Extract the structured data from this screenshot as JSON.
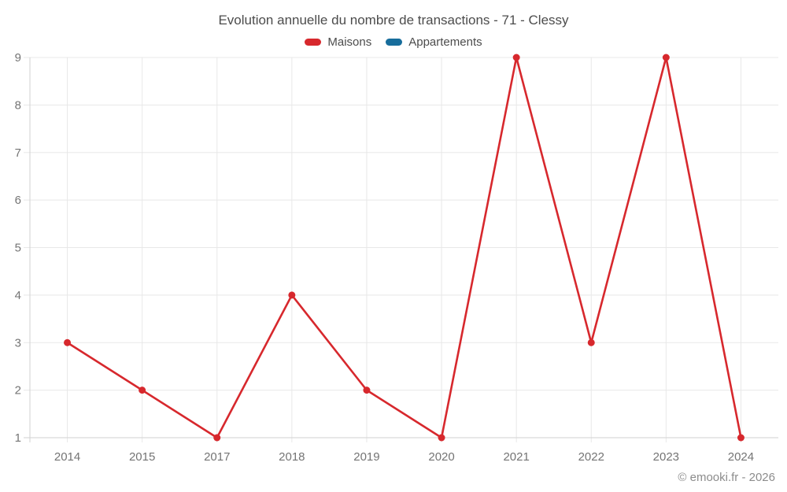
{
  "title": "Evolution annuelle du nombre de transactions - 71 - Clessy",
  "footer": "© emooki.fr - 2026",
  "colors": {
    "maisons_red": "#d7282d",
    "appartements_blue": "#176d9c",
    "grid": "#e8e8e8",
    "axis": "#d2d2d2",
    "tick_text": "#747474",
    "title_text": "#4c4c4c",
    "footer_text": "#8c8c8c"
  },
  "chart_data": {
    "type": "line",
    "title": "Evolution annuelle du nombre de transactions - 71 - Clessy",
    "categories": [
      "2014",
      "2015",
      "2017",
      "2018",
      "2019",
      "2020",
      "2021",
      "2022",
      "2023",
      "2024"
    ],
    "series": [
      {
        "name": "Maisons",
        "color": "#d7282d",
        "values": [
          3,
          2,
          1,
          4,
          2,
          1,
          9,
          3,
          9,
          1
        ]
      },
      {
        "name": "Appartements",
        "color": "#176d9c",
        "values": []
      }
    ],
    "xlabel": "",
    "ylabel": "",
    "ylim": [
      1,
      9
    ],
    "yticks": [
      1,
      2,
      3,
      4,
      5,
      6,
      7,
      8,
      9
    ],
    "grid": true,
    "legend_position": "top",
    "point_radius": 4.5,
    "line_width": 2.6
  }
}
